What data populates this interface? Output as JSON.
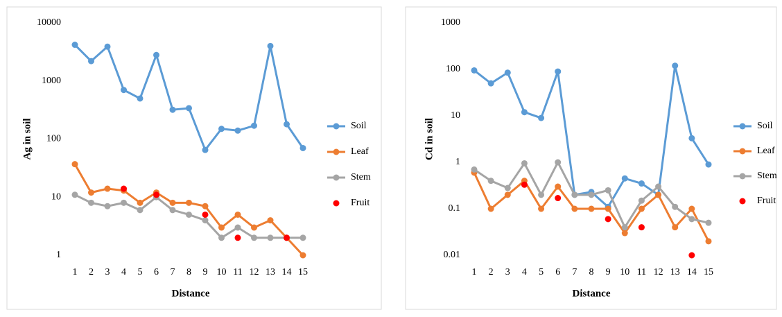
{
  "chart_data": [
    {
      "type": "line",
      "log_y": true,
      "y_label": "Ag in soil",
      "x_label": "Distance",
      "categories": [
        "1",
        "2",
        "3",
        "4",
        "5",
        "6",
        "7",
        "8",
        "9",
        "10",
        "11",
        "12",
        "13",
        "14",
        "15"
      ],
      "ylim": [
        1,
        10000
      ],
      "yticks": [
        1,
        10,
        100,
        1000,
        10000
      ],
      "legend": "right",
      "series": [
        {
          "name": "Soil",
          "color": "#5b9bd5",
          "line": true,
          "values": [
            4200,
            2200,
            3900,
            700,
            500,
            2800,
            320,
            340,
            65,
            150,
            140,
            170,
            4000,
            180,
            70
          ]
        },
        {
          "name": "Leaf",
          "color": "#ed7d31",
          "line": true,
          "values": [
            37,
            12,
            14,
            13,
            8,
            12,
            8,
            8,
            7,
            3,
            5,
            3,
            4,
            2,
            1
          ]
        },
        {
          "name": "Stem",
          "color": "#a5a5a5",
          "line": true,
          "values": [
            11,
            8,
            7,
            8,
            6,
            10,
            6,
            5,
            4,
            2,
            3,
            2,
            2,
            2,
            2
          ]
        },
        {
          "name": "Fruit",
          "color": "#ff0000",
          "line": false,
          "values": [
            null,
            null,
            null,
            14,
            null,
            11,
            null,
            null,
            5,
            null,
            2,
            null,
            null,
            2,
            null
          ]
        }
      ]
    },
    {
      "type": "line",
      "log_y": true,
      "y_label": "Cd in soil",
      "x_label": "Distance",
      "categories": [
        "1",
        "2",
        "3",
        "4",
        "5",
        "6",
        "7",
        "8",
        "9",
        "10",
        "11",
        "12",
        "13",
        "14",
        "15"
      ],
      "ylim": [
        0.01,
        1000
      ],
      "yticks": [
        0.01,
        0.1,
        1,
        10,
        100,
        1000
      ],
      "legend": "right",
      "series": [
        {
          "name": "Soil",
          "color": "#5b9bd5",
          "line": true,
          "values": [
            95,
            50,
            85,
            12,
            9,
            90,
            0.2,
            0.23,
            0.11,
            0.45,
            0.35,
            0.2,
            120,
            3.3,
            0.9
          ]
        },
        {
          "name": "Leaf",
          "color": "#ed7d31",
          "line": true,
          "values": [
            0.6,
            0.1,
            0.2,
            0.4,
            0.1,
            0.3,
            0.1,
            0.1,
            0.1,
            0.03,
            0.1,
            0.2,
            0.04,
            0.1,
            0.02
          ]
        },
        {
          "name": "Stem",
          "color": "#a5a5a5",
          "line": true,
          "values": [
            0.7,
            0.4,
            0.28,
            0.95,
            0.2,
            1.0,
            0.2,
            0.2,
            0.25,
            0.04,
            0.15,
            0.3,
            0.11,
            0.06,
            0.05
          ]
        },
        {
          "name": "Fruit",
          "color": "#ff0000",
          "line": false,
          "values": [
            null,
            null,
            null,
            0.33,
            null,
            0.17,
            null,
            null,
            0.06,
            null,
            0.04,
            null,
            null,
            0.01,
            null
          ]
        }
      ]
    }
  ]
}
